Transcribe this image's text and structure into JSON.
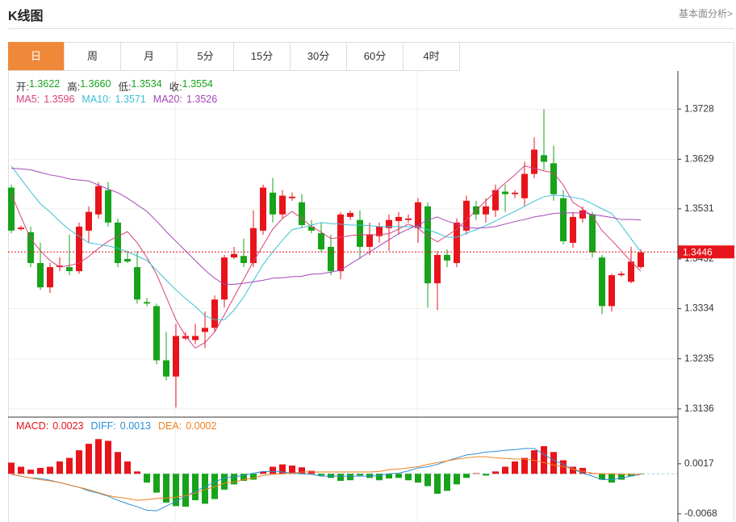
{
  "header": {
    "title": "K线图",
    "link": "基本面分析>"
  },
  "tabs": [
    "日",
    "周",
    "月",
    "5分",
    "15分",
    "30分",
    "60分",
    "4时"
  ],
  "active_tab": "日",
  "ohlc_info": [
    {
      "label": "开:",
      "value": "1.3622"
    },
    {
      "label": "高:",
      "value": "1.3660"
    },
    {
      "label": "低:",
      "value": "1.3534"
    },
    {
      "label": "收:",
      "value": "1.3554"
    }
  ],
  "chart_data": [
    {
      "type": "candlestick",
      "up_color": "#e8141b",
      "down_color": "#17a31a",
      "grid": true,
      "ylim": [
        1.3123,
        1.38
      ],
      "yticks": [
        1.3136,
        1.3235,
        1.3334,
        1.3432,
        1.3531,
        1.3629,
        1.3728
      ],
      "last_price": {
        "value": 1.3446,
        "color": "#e8141b"
      },
      "open": [
        1.3573,
        1.3491,
        1.3485,
        1.3424,
        1.3376,
        1.3416,
        1.3416,
        1.3408,
        1.3488,
        1.352,
        1.3568,
        1.3504,
        1.3432,
        1.3416,
        1.3347,
        1.3339,
        1.3232,
        1.32,
        1.3275,
        1.3272,
        1.3288,
        1.3296,
        1.3352,
        1.3435,
        1.3438,
        1.3424,
        1.3488,
        1.3563,
        1.352,
        1.3552,
        1.3544,
        1.3496,
        1.3483,
        1.3456,
        1.3408,
        1.3515,
        1.3509,
        1.3456,
        1.3477,
        1.3493,
        1.3507,
        1.3509,
        1.3493,
        1.3536,
        1.3384,
        1.344,
        1.3424,
        1.3488,
        1.3536,
        1.352,
        1.3528,
        1.3565,
        1.356,
        1.3552,
        1.36,
        1.3637,
        1.3621,
        1.3552,
        1.3464,
        1.3512,
        1.352,
        1.3435,
        1.3339,
        1.34,
        1.3387,
        1.3416
      ],
      "close": [
        1.3488,
        1.3494,
        1.3424,
        1.3376,
        1.3416,
        1.3419,
        1.3408,
        1.3496,
        1.3525,
        1.3576,
        1.3504,
        1.3424,
        1.3427,
        1.3352,
        1.3344,
        1.3232,
        1.32,
        1.328,
        1.328,
        1.328,
        1.3296,
        1.3352,
        1.3435,
        1.3442,
        1.3424,
        1.3493,
        1.3573,
        1.352,
        1.3557,
        1.3555,
        1.3499,
        1.3488,
        1.3451,
        1.3408,
        1.352,
        1.3523,
        1.3456,
        1.348,
        1.3496,
        1.3509,
        1.3515,
        1.3512,
        1.3544,
        1.3384,
        1.344,
        1.3429,
        1.3504,
        1.3547,
        1.352,
        1.3536,
        1.3568,
        1.356,
        1.3563,
        1.36,
        1.3648,
        1.3624,
        1.356,
        1.3467,
        1.3515,
        1.3528,
        1.3445,
        1.3339,
        1.34,
        1.3403,
        1.3427,
        1.3445
      ],
      "high": [
        1.3579,
        1.3498,
        1.3496,
        1.3464,
        1.3424,
        1.3435,
        1.348,
        1.3504,
        1.3536,
        1.3584,
        1.3584,
        1.3512,
        1.3448,
        1.3448,
        1.3355,
        1.3344,
        1.3288,
        1.3304,
        1.3288,
        1.3304,
        1.3328,
        1.336,
        1.344,
        1.3456,
        1.3472,
        1.3528,
        1.3579,
        1.3592,
        1.3568,
        1.3563,
        1.356,
        1.3509,
        1.3504,
        1.348,
        1.3525,
        1.3528,
        1.3528,
        1.3504,
        1.3504,
        1.352,
        1.3525,
        1.352,
        1.3552,
        1.3544,
        1.3448,
        1.3451,
        1.3512,
        1.3557,
        1.3547,
        1.3552,
        1.3579,
        1.3579,
        1.3568,
        1.3624,
        1.3672,
        1.3728,
        1.3656,
        1.3568,
        1.3525,
        1.3536,
        1.3525,
        1.344,
        1.3403,
        1.3408,
        1.3456,
        1.3451
      ],
      "low": [
        1.3483,
        1.3488,
        1.3416,
        1.3371,
        1.3365,
        1.3408,
        1.34,
        1.3403,
        1.3464,
        1.3512,
        1.3496,
        1.3416,
        1.3424,
        1.3344,
        1.3339,
        1.3224,
        1.3192,
        1.3139,
        1.3272,
        1.3264,
        1.3256,
        1.3288,
        1.3336,
        1.3432,
        1.3416,
        1.3416,
        1.348,
        1.3504,
        1.3512,
        1.3547,
        1.3493,
        1.3483,
        1.3445,
        1.34,
        1.3392,
        1.3509,
        1.3432,
        1.344,
        1.3464,
        1.3448,
        1.348,
        1.3504,
        1.3464,
        1.3336,
        1.3331,
        1.3416,
        1.3416,
        1.348,
        1.3509,
        1.3504,
        1.3515,
        1.3525,
        1.3552,
        1.3536,
        1.3592,
        1.3608,
        1.3547,
        1.3461,
        1.3454,
        1.3504,
        1.3435,
        1.3323,
        1.3328,
        1.3397,
        1.3384,
        1.3413
      ],
      "series": [
        {
          "name": "MA5:",
          "current": 1.3596,
          "color": "#d6407a",
          "values": [
            1.356,
            1.3515,
            1.3472,
            1.3448,
            1.3429,
            1.3416,
            1.3419,
            1.3424,
            1.3437,
            1.3453,
            1.3467,
            1.3477,
            1.3486,
            1.3464,
            1.3435,
            1.3402,
            1.3357,
            1.3312,
            1.328,
            1.3256,
            1.3267,
            1.3288,
            1.3322,
            1.3357,
            1.3392,
            1.3427,
            1.3459,
            1.3491,
            1.3512,
            1.3526,
            1.3512,
            1.3496,
            1.3485,
            1.3472,
            1.3475,
            1.3478,
            1.348,
            1.348,
            1.348,
            1.3482,
            1.3491,
            1.3501,
            1.3493,
            1.3477,
            1.3466,
            1.3478,
            1.3491,
            1.3509,
            1.3528,
            1.3547,
            1.3565,
            1.3582,
            1.3598,
            1.3616,
            1.3611,
            1.3606,
            1.3602,
            1.3578,
            1.3544,
            1.3531,
            1.3517,
            1.3488,
            1.3469,
            1.3448,
            1.3427,
            1.3408
          ]
        },
        {
          "name": "MA10:",
          "current": 1.3571,
          "color": "#3cc0d4",
          "values": [
            1.3616,
            1.359,
            1.3565,
            1.3541,
            1.3525,
            1.3506,
            1.349,
            1.3477,
            1.3464,
            1.3461,
            1.3458,
            1.3453,
            1.3446,
            1.3438,
            1.3429,
            1.341,
            1.339,
            1.3371,
            1.3354,
            1.3338,
            1.332,
            1.3312,
            1.3312,
            1.3331,
            1.3357,
            1.3389,
            1.3421,
            1.3446,
            1.3469,
            1.349,
            1.3494,
            1.3499,
            1.3504,
            1.3502,
            1.3501,
            1.3499,
            1.3499,
            1.3498,
            1.3496,
            1.3496,
            1.3496,
            1.3496,
            1.3496,
            1.349,
            1.3483,
            1.3475,
            1.3475,
            1.3483,
            1.349,
            1.3498,
            1.3507,
            1.3517,
            1.3526,
            1.3536,
            1.3546,
            1.3555,
            1.3558,
            1.3557,
            1.3554,
            1.355,
            1.3541,
            1.3531,
            1.3522,
            1.3498,
            1.3472,
            1.3446
          ]
        },
        {
          "name": "MA20:",
          "current": 1.3526,
          "color": "#a544b8",
          "values": [
            1.3611,
            1.361,
            1.3608,
            1.3603,
            1.3598,
            1.3595,
            1.359,
            1.3588,
            1.3586,
            1.3578,
            1.357,
            1.3563,
            1.3552,
            1.3539,
            1.3526,
            1.3507,
            1.3486,
            1.3467,
            1.3448,
            1.3429,
            1.341,
            1.3394,
            1.3382,
            1.3382,
            1.3384,
            1.3387,
            1.339,
            1.3394,
            1.3395,
            1.3397,
            1.3398,
            1.3402,
            1.3403,
            1.3406,
            1.341,
            1.3422,
            1.3434,
            1.3446,
            1.3458,
            1.347,
            1.3482,
            1.3491,
            1.3499,
            1.3509,
            1.3515,
            1.3507,
            1.3501,
            1.3494,
            1.3493,
            1.3494,
            1.3496,
            1.3501,
            1.3506,
            1.351,
            1.3515,
            1.3518,
            1.3522,
            1.3523,
            1.3523,
            1.3523,
            1.352,
            1.3517,
            1.3514,
            1.351,
            1.351,
            1.3509
          ]
        }
      ]
    },
    {
      "type": "macd",
      "up_color": "#e8141b",
      "down_color": "#17a31a",
      "zero_color": "#9fd0d8",
      "ylim": [
        -0.0082,
        0.0095
      ],
      "yticks": [
        -0.0068,
        0.0017
      ],
      "bars": {
        "name": "MACD:",
        "current": 0.0023,
        "values": [
          0.0019,
          0.0012,
          0.0007,
          0.001,
          0.0012,
          0.0021,
          0.0027,
          0.004,
          0.0051,
          0.0059,
          0.0056,
          0.0037,
          0.0021,
          0.0004,
          -0.0015,
          -0.0032,
          -0.0049,
          -0.0055,
          -0.0056,
          -0.0045,
          -0.0051,
          -0.0043,
          -0.0027,
          -0.0018,
          -0.0012,
          -0.001,
          0.0004,
          0.0012,
          0.0016,
          0.0014,
          0.0011,
          0.0005,
          -0.0003,
          -0.0007,
          -0.0012,
          -0.0011,
          -0.0003,
          -0.0007,
          -0.0011,
          -0.0008,
          -0.0007,
          -0.0011,
          -0.0015,
          -0.0021,
          -0.0034,
          -0.0029,
          -0.0018,
          -0.0007,
          0.0001,
          -0.0003,
          0.0004,
          0.0012,
          0.0021,
          0.0027,
          0.004,
          0.0047,
          0.0037,
          0.0023,
          0.0012,
          0.001,
          0.0001,
          -0.001,
          -0.0015,
          -0.001,
          -0.0004,
          -0.0001
        ]
      },
      "series": [
        {
          "name": "DIFF:",
          "current": 0.0013,
          "color": "#2a8fd8",
          "values": [
            -0.0001,
            -0.0004,
            -0.0007,
            -0.0008,
            -0.0011,
            -0.0015,
            -0.0019,
            -0.0023,
            -0.0029,
            -0.0033,
            -0.0038,
            -0.0045,
            -0.0051,
            -0.0056,
            -0.0062,
            -0.0063,
            -0.0055,
            -0.0047,
            -0.0038,
            -0.003,
            -0.0022,
            -0.0014,
            -0.0007,
            -0.0005,
            -0.0003,
            0.0001,
            0.0004,
            0.0004,
            0.0003,
            0.0001,
            0,
            -0.0001,
            -0.0004,
            -0.0004,
            -0.0004,
            -0.0004,
            -0.0004,
            -0.0004,
            -0.0003,
            0,
            0.0001,
            0.0005,
            0.001,
            0.0012,
            0.0016,
            0.0022,
            0.0027,
            0.0032,
            0.0034,
            0.0037,
            0.0038,
            0.004,
            0.0041,
            0.0043,
            0.0043,
            0.0033,
            0.0023,
            0.0016,
            0.0008,
            0.0001,
            -0.0004,
            -0.001,
            -0.001,
            -0.0007,
            -0.0004,
            -0.0001
          ]
        },
        {
          "name": "DEA:",
          "current": 0.0002,
          "color": "#f08020",
          "values": [
            -0.0001,
            -0.0004,
            -0.0007,
            -0.001,
            -0.0012,
            -0.0015,
            -0.0019,
            -0.0023,
            -0.0027,
            -0.0032,
            -0.0037,
            -0.004,
            -0.0042,
            -0.0045,
            -0.0044,
            -0.0042,
            -0.0041,
            -0.004,
            -0.0037,
            -0.0033,
            -0.0027,
            -0.0022,
            -0.0016,
            -0.0014,
            -0.001,
            -0.0007,
            -0.0003,
            -0.0001,
            0,
            0.0001,
            0.0003,
            0.0003,
            0.0003,
            0.0003,
            0.0003,
            0.0003,
            0.0003,
            0.0003,
            0.0004,
            0.0007,
            0.0008,
            0.001,
            0.0012,
            0.0016,
            0.0019,
            0.0022,
            0.0025,
            0.0027,
            0.0029,
            0.0029,
            0.0027,
            0.0026,
            0.0025,
            0.0025,
            0.0023,
            0.0019,
            0.0015,
            0.0012,
            0.0008,
            0.0004,
            0.0001,
            0,
            0,
            -0.0001,
            -0.0001,
            -0.0001
          ]
        }
      ]
    }
  ]
}
